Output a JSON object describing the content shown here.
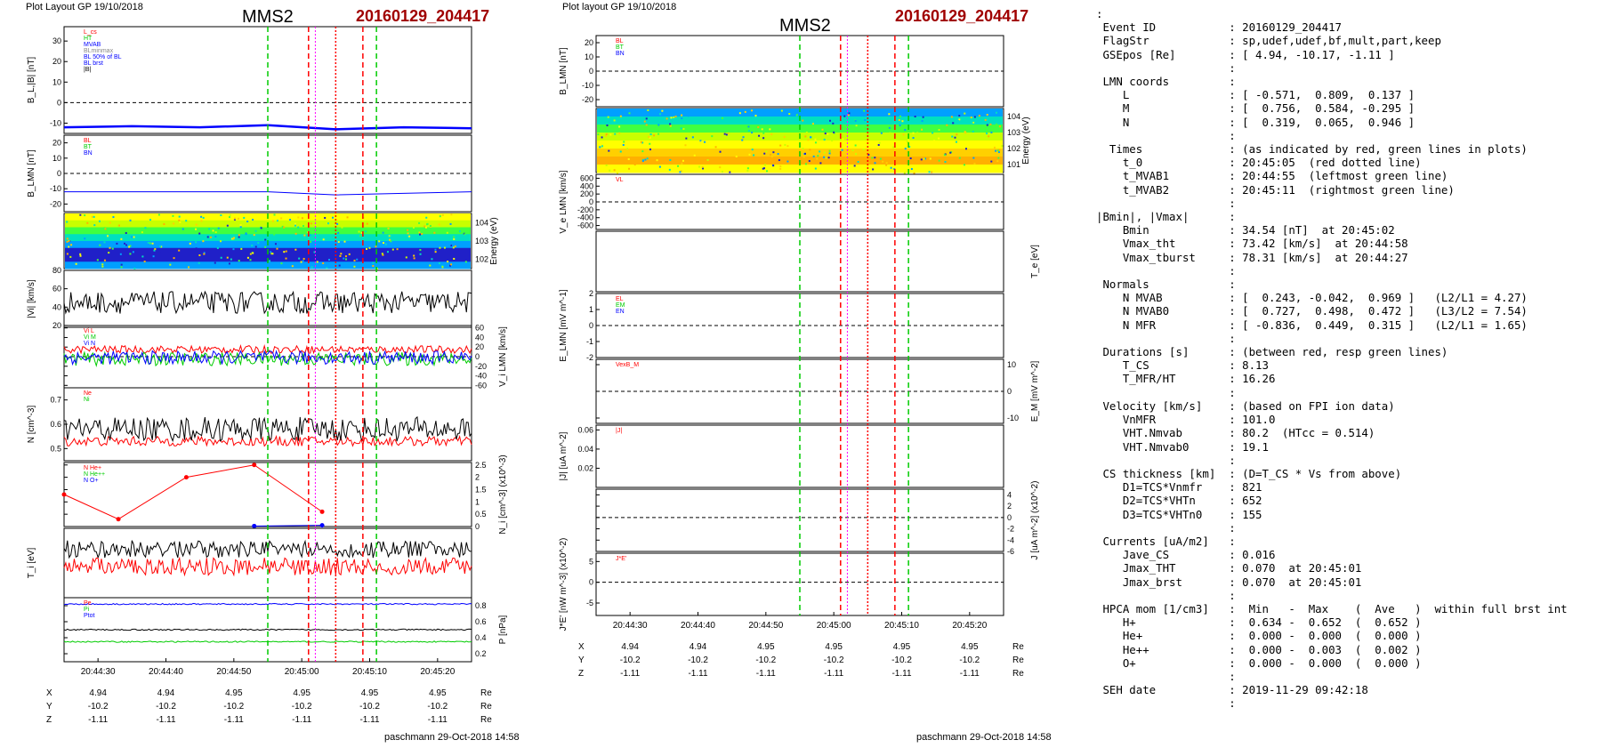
{
  "left": {
    "plot_layout": "Plot Layout GP 19/10/2018",
    "spacecraft": "MMS2",
    "event": "20160129_204417",
    "footer": "paschmann 29-Oct-2018 14:58",
    "time_ticks": [
      "20:44:30",
      "20:44:40",
      "20:44:50",
      "20:45:00",
      "20:45:10",
      "20:45:20"
    ],
    "orbit_rows": [
      {
        "label": "X",
        "values": [
          "4.94",
          "4.94",
          "4.95",
          "4.95",
          "4.95",
          "4.95"
        ],
        "unit": "Re"
      },
      {
        "label": "Y",
        "values": [
          "-10.2",
          "-10.2",
          "-10.2",
          "-10.2",
          "-10.2",
          "-10.2"
        ],
        "unit": "Re"
      },
      {
        "label": "Z",
        "values": [
          "-1.11",
          "-1.11",
          "-1.11",
          "-1.11",
          "-1.11",
          "-1.11"
        ],
        "unit": "Re"
      }
    ]
  },
  "right": {
    "plot_layout": "Plot layout GP 19/10/2018",
    "spacecraft": "MMS2",
    "event": "20160129_204417",
    "footer": "paschmann 29-Oct-2018 14:58",
    "time_ticks": [
      "20:44:30",
      "20:44:40",
      "20:44:50",
      "20:45:00",
      "20:45:10",
      "20:45:20"
    ],
    "orbit_rows": [
      {
        "label": "X",
        "values": [
          "4.94",
          "4.94",
          "4.95",
          "4.95",
          "4.95",
          "4.95"
        ],
        "unit": "Re"
      },
      {
        "label": "Y",
        "values": [
          "-10.2",
          "-10.2",
          "-10.2",
          "-10.2",
          "-10.2",
          "-10.2"
        ],
        "unit": "Re"
      },
      {
        "label": "Z",
        "values": [
          "-1.11",
          "-1.11",
          "-1.11",
          "-1.11",
          "-1.11",
          "-1.11"
        ],
        "unit": "Re"
      }
    ]
  },
  "colors": {
    "title_red": "#a00000",
    "red": "#ff0000",
    "green": "#00cc00",
    "blue": "#0000ff",
    "magenta": "#ff00ff",
    "gray": "#888888"
  },
  "info_lines": [
    ":",
    " Event ID           : 20160129_204417",
    " FlagStr            : sp,udef,udef,bf,mult,part,keep",
    " GSEpos [Re]        : [ 4.94, -10.17, -1.11 ]",
    "                    :",
    " LMN coords         :",
    "    L               : [ -0.571,  0.809,  0.137 ]",
    "    M               : [  0.756,  0.584, -0.295 ]",
    "    N               : [  0.319,  0.065,  0.946 ]",
    "                    :",
    "  Times             : (as indicated by red, green lines in plots)",
    "    t_0             : 20:45:05  (red dotted line)",
    "    t_MVAB1         : 20:44:55  (leftmost green line)",
    "    t_MVAB2         : 20:45:11  (rightmost green line)",
    "                    :",
    "|Bmin|, |Vmax|      :",
    "    Bmin            : 34.54 [nT]  at 20:45:02",
    "    Vmax_tht        : 73.42 [km/s]  at 20:44:58",
    "    Vmax_tburst     : 78.31 [km/s]  at 20:44:27",
    "                    :",
    " Normals            :",
    "    N MVAB          : [  0.243, -0.042,  0.969 ]   (L2/L1 = 4.27)",
    "    N MVAB0         : [  0.727,  0.498,  0.472 ]   (L3/L2 = 7.54)",
    "    N MFR           : [ -0.836,  0.449,  0.315 ]   (L2/L1 = 1.65)",
    "                    :",
    " Durations [s]      : (between red, resp green lines)",
    "    T_CS            : 8.13",
    "    T_MFR/HT        : 16.26",
    "                    :",
    " Velocity [km/s]    : (based on FPI ion data)",
    "    VnMFR           : 101.0",
    "    VHT.Nmvab       : 80.2  (HTcc = 0.514)",
    "    VHT.Nmvab0      : 19.1",
    "                    :",
    " CS thickness [km]  : (D=T_CS * Vs from above)",
    "    D1=TCS*Vnmfr    : 821",
    "    D2=TCS*VHTn     : 652",
    "    D3=TCS*VHTn0    : 155",
    "                    :",
    " Currents [uA/m2]   :",
    "    Jave_CS         : 0.016",
    "    Jmax_THT        : 0.070  at 20:45:01",
    "    Jmax_brst       : 0.070  at 20:45:01",
    "                    :",
    " HPCA mom [1/cm3]   :  Min   -  Max    (  Ave   )  within full brst int",
    "    H+              :  0.634 -  0.652  (  0.652 )",
    "    He+             :  0.000 -  0.000  (  0.000 )",
    "    He++            :  0.000 -  0.003  (  0.002 )",
    "    O+              :  0.000 -  0.000  (  0.000 )",
    "                    :",
    " SEH date           : 2019-11-29 09:42:18",
    "                    :"
  ],
  "chart_data": [
    {
      "type": "line",
      "figure": "left",
      "time_range": [
        "20:44:25",
        "20:45:25"
      ],
      "time_ticks": [
        "20:44:30",
        "20:44:40",
        "20:44:50",
        "20:45:00",
        "20:45:10",
        "20:45:20"
      ],
      "event_lines": [
        {
          "time": "20:44:55",
          "color": "green",
          "style": "dashed"
        },
        {
          "time": "20:45:01",
          "color": "red",
          "style": "dashed"
        },
        {
          "time": "20:45:05",
          "color": "red",
          "style": "dotted"
        },
        {
          "time": "20:45:09",
          "color": "red",
          "style": "dashed"
        },
        {
          "time": "20:45:11",
          "color": "green",
          "style": "dashed"
        }
      ],
      "panels": [
        {
          "id": "b_total",
          "ylabel": "B_L,|B| [nT]",
          "ylim": [
            -15,
            37
          ],
          "yticks": [
            -10,
            0,
            10,
            20,
            30
          ],
          "legend": [
            "L_cs",
            "HT",
            "MVAB",
            "BLminmax",
            "BL 50% of BL",
            "BL brst",
            "|B|"
          ],
          "series": [
            {
              "name": "BL brst",
              "color": "blue",
              "points": [
                [
                  0,
                  -12
                ],
                [
                  10,
                  -11.5
                ],
                [
                  20,
                  -12
                ],
                [
                  30,
                  -11
                ],
                [
                  40,
                  -13
                ],
                [
                  50,
                  -12
                ],
                [
                  60,
                  -12.5
                ]
              ]
            }
          ]
        },
        {
          "id": "b_lmn",
          "ylabel": "B_LMN [nT]",
          "ylim": [
            -25,
            25
          ],
          "yticks": [
            -20,
            -10,
            0,
            10,
            20
          ],
          "legend": [
            "BL",
            "BT",
            "BN"
          ],
          "series": [
            {
              "name": "BL",
              "color": "blue",
              "points": [
                [
                  0,
                  -12
                ],
                [
                  30,
                  -12
                ],
                [
                  40,
                  -14
                ],
                [
                  60,
                  -12
                ]
              ]
            }
          ]
        },
        {
          "id": "ion_spectrogram",
          "ylabel": "Energy (eV)",
          "yticks": [
            "10^2",
            "10^3",
            "10^4"
          ]
        },
        {
          "id": "vi_mag",
          "ylabel": "|Vi| [km/s]",
          "ylim": [
            18,
            80
          ],
          "yticks": [
            20,
            40,
            60,
            80
          ],
          "series": [
            {
              "name": "|Vi|",
              "color": "black",
              "mean": 45,
              "amp": 12
            }
          ]
        },
        {
          "id": "vi_lmn",
          "ylabel": "V_i LMN [km/s]",
          "ylim": [
            -65,
            65
          ],
          "yticks": [
            -60,
            -40,
            -20,
            0,
            20,
            40,
            60
          ],
          "legend": [
            "Vi L",
            "Vi M",
            "Vi N"
          ],
          "series": [
            {
              "name": "L",
              "color": "red",
              "mean": 15,
              "amp": 8
            },
            {
              "name": "M",
              "color": "green",
              "mean": -5,
              "amp": 14
            },
            {
              "name": "N",
              "color": "blue",
              "mean": -2,
              "amp": 14
            }
          ]
        },
        {
          "id": "density",
          "ylabel": "N [cm^-3]",
          "ylim": [
            0.45,
            0.75
          ],
          "yticks": [
            0.5,
            0.6,
            0.7
          ],
          "legend": [
            "Ne",
            "Ni"
          ],
          "series": [
            {
              "name": "Ne",
              "color": "red",
              "mean": 0.53,
              "amp": 0.02
            },
            {
              "name": "Ni",
              "color": "black",
              "mean": 0.58,
              "amp": 0.05
            }
          ]
        },
        {
          "id": "hpca",
          "ylabel": "N_i [cm^-3] (x10^-3)",
          "ylim": [
            0,
            2.6
          ],
          "yticks": [
            0,
            0.5,
            1.0,
            1.5,
            2.0,
            2.5
          ],
          "legend": [
            "N He+",
            "N He++",
            "N O+"
          ],
          "series": [
            {
              "name": "N He++",
              "color": "red",
              "points": [
                [
                  0,
                  1.3
                ],
                [
                  8,
                  0.3
                ],
                [
                  18,
                  2.0
                ],
                [
                  28,
                  2.5
                ],
                [
                  38,
                  0.6
                ]
              ]
            },
            {
              "name": "N O+",
              "color": "blue",
              "points": [
                [
                  28,
                  0.02
                ],
                [
                  38,
                  0.05
                ]
              ]
            }
          ]
        },
        {
          "id": "ti",
          "ylabel": "T_i [eV]",
          "series": [
            {
              "name": "Ti par",
              "color": "black"
            },
            {
              "name": "Ti perp",
              "color": "red"
            }
          ]
        },
        {
          "id": "pressure",
          "ylabel": "P [nPa]",
          "ylim": [
            0.1,
            0.9
          ],
          "yticks": [
            0.2,
            0.4,
            0.6,
            0.8
          ],
          "legend": [
            "Pe",
            "Pi",
            "Ptot"
          ],
          "series": [
            {
              "name": "Pe",
              "color": "blue",
              "mean": 0.82
            },
            {
              "name": "Pi",
              "color": "black",
              "mean": 0.5
            },
            {
              "name": "Ptot",
              "color": "green",
              "mean": 0.35
            }
          ]
        }
      ]
    },
    {
      "type": "line",
      "figure": "right",
      "time_range": [
        "20:44:25",
        "20:45:25"
      ],
      "time_ticks": [
        "20:44:30",
        "20:44:40",
        "20:44:50",
        "20:45:00",
        "20:45:10",
        "20:45:20"
      ],
      "panels": [
        {
          "id": "b_lmn",
          "ylabel": "B_LMN [nT]",
          "ylim": [
            -25,
            25
          ],
          "yticks": [
            -20,
            -10,
            0,
            10,
            20
          ],
          "legend": [
            "BL",
            "BT",
            "BN"
          ]
        },
        {
          "id": "electron_spectrogram",
          "ylabel": "Energy (eV)",
          "yticks": [
            "10^1",
            "10^2",
            "10^3",
            "10^4"
          ]
        },
        {
          "id": "ve_lmn",
          "ylabel": "V_e LMN [km/s]",
          "ylim": [
            -700,
            700
          ],
          "yticks": [
            -600,
            -400,
            -200,
            0,
            200,
            400,
            600
          ],
          "legend": [
            "VL"
          ]
        },
        {
          "id": "te",
          "ylabel": "T_e [eV]",
          "yticks": [
            "10^3"
          ]
        },
        {
          "id": "e_lmn",
          "ylabel": "E_LMN [mV m^-1]",
          "ylim": [
            -2,
            2
          ],
          "yticks": [
            -2,
            -1,
            0,
            1,
            2
          ],
          "legend": [
            "EL",
            "EM",
            "EN"
          ]
        },
        {
          "id": "em",
          "ylabel": "E_M [mV m^-2]",
          "ylim": [
            -12,
            12
          ],
          "yticks": [
            -10,
            0,
            10
          ],
          "legend": [
            "VexB_M"
          ]
        },
        {
          "id": "j_mag",
          "ylabel": "|J| [uA m^-2]",
          "ylim": [
            0,
            0.065
          ],
          "yticks": [
            0.02,
            0.04,
            0.06
          ],
          "legend": [
            "|J|"
          ]
        },
        {
          "id": "j_lmn",
          "ylabel": "J [uA m^-2] (x10^-2)",
          "ylim": [
            -6,
            5
          ],
          "yticks": [
            -6,
            -4,
            -2,
            0,
            2,
            4
          ]
        },
        {
          "id": "jdote",
          "ylabel": "J*E' [nW m^-3] (x10^-2)",
          "ylim": [
            -8,
            7
          ],
          "yticks": [
            -5,
            0,
            5
          ],
          "legend": [
            "J*E'"
          ]
        }
      ]
    }
  ]
}
